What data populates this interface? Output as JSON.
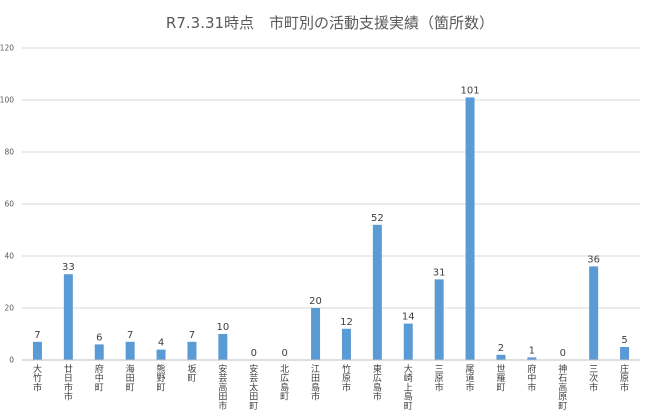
{
  "chart_data": {
    "type": "bar",
    "title": "R7.3.31時点　市町別の活動支援実績（箇所数）",
    "xlabel": "",
    "ylabel": "",
    "ylim": [
      0,
      120
    ],
    "yticks": [
      0,
      20,
      40,
      60,
      80,
      100,
      120
    ],
    "grid": true,
    "legend": "none",
    "color": "#5b9bd5",
    "categories": [
      "大竹市",
      "廿日市市",
      "府中町",
      "海田町",
      "熊野町",
      "坂町",
      "安芸高田市",
      "安芸太田町",
      "北広島町",
      "江田島市",
      "竹原市",
      "東広島市",
      "大崎上島町",
      "三原市",
      "尾道市",
      "世羅町",
      "府中市",
      "神石高原町",
      "三次市",
      "庄原市"
    ],
    "values": [
      7,
      33,
      6,
      7,
      4,
      7,
      10,
      0,
      0,
      20,
      12,
      52,
      14,
      31,
      101,
      2,
      1,
      0,
      36,
      5
    ]
  }
}
